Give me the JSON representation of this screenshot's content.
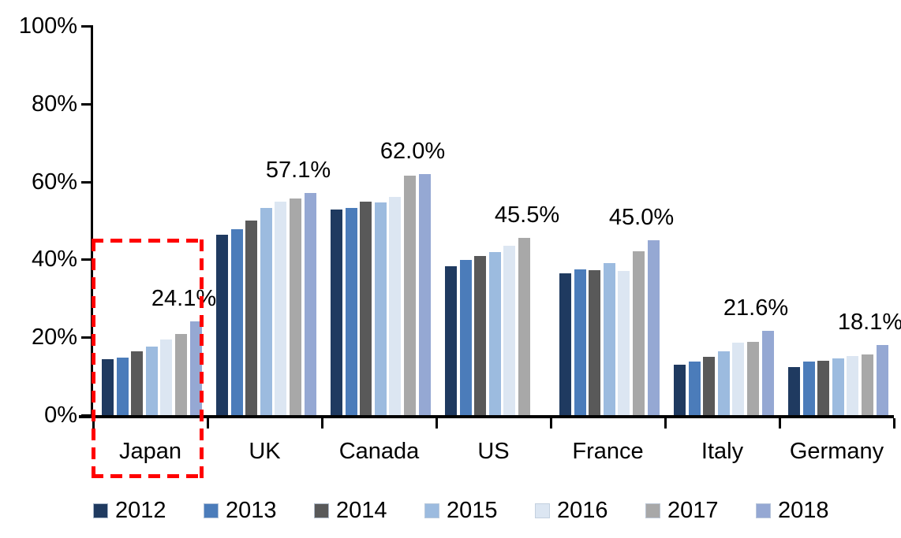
{
  "chart_data": {
    "type": "bar",
    "title": "",
    "xlabel": "",
    "ylabel": "",
    "categories": [
      "Japan",
      "UK",
      "Canada",
      "US",
      "France",
      "Italy",
      "Germany"
    ],
    "series": [
      {
        "name": "2012",
        "color": "#1F3A60",
        "values": [
          14.4,
          46.3,
          52.9,
          38.2,
          36.5,
          13.0,
          12.3
        ]
      },
      {
        "name": "2013",
        "color": "#4B7CBA",
        "values": [
          14.7,
          47.7,
          53.2,
          39.9,
          37.4,
          13.8,
          13.7
        ]
      },
      {
        "name": "2014",
        "color": "#595959",
        "values": [
          16.4,
          49.9,
          54.8,
          40.9,
          37.3,
          15.0,
          14.0
        ]
      },
      {
        "name": "2015",
        "color": "#9CBBDF",
        "values": [
          17.7,
          53.3,
          54.6,
          42.0,
          39.1,
          16.4,
          14.5
        ]
      },
      {
        "name": "2016",
        "color": "#DCE6F2",
        "values": [
          19.5,
          54.8,
          56.0,
          43.5,
          37.1,
          18.6,
          15.2
        ]
      },
      {
        "name": "2017",
        "color": "#A8A8A8",
        "values": [
          20.8,
          55.7,
          61.6,
          45.5,
          42.2,
          18.8,
          15.5
        ]
      },
      {
        "name": "2018",
        "color": "#95A8D3",
        "values": [
          24.1,
          57.1,
          62.0,
          null,
          45.0,
          21.6,
          18.1
        ]
      }
    ],
    "value_labels": [
      "24.1%",
      "57.1%",
      "62.0%",
      "45.5%",
      "45.0%",
      "21.6%",
      "18.1%"
    ],
    "yticks": [
      "0%",
      "20%",
      "40%",
      "60%",
      "80%",
      "100%"
    ],
    "ylim": [
      0,
      100
    ],
    "grid": false,
    "legend_position": "bottom",
    "highlight": {
      "category": "Japan",
      "style": "red-dashed-box",
      "color": "#FF0000"
    }
  }
}
